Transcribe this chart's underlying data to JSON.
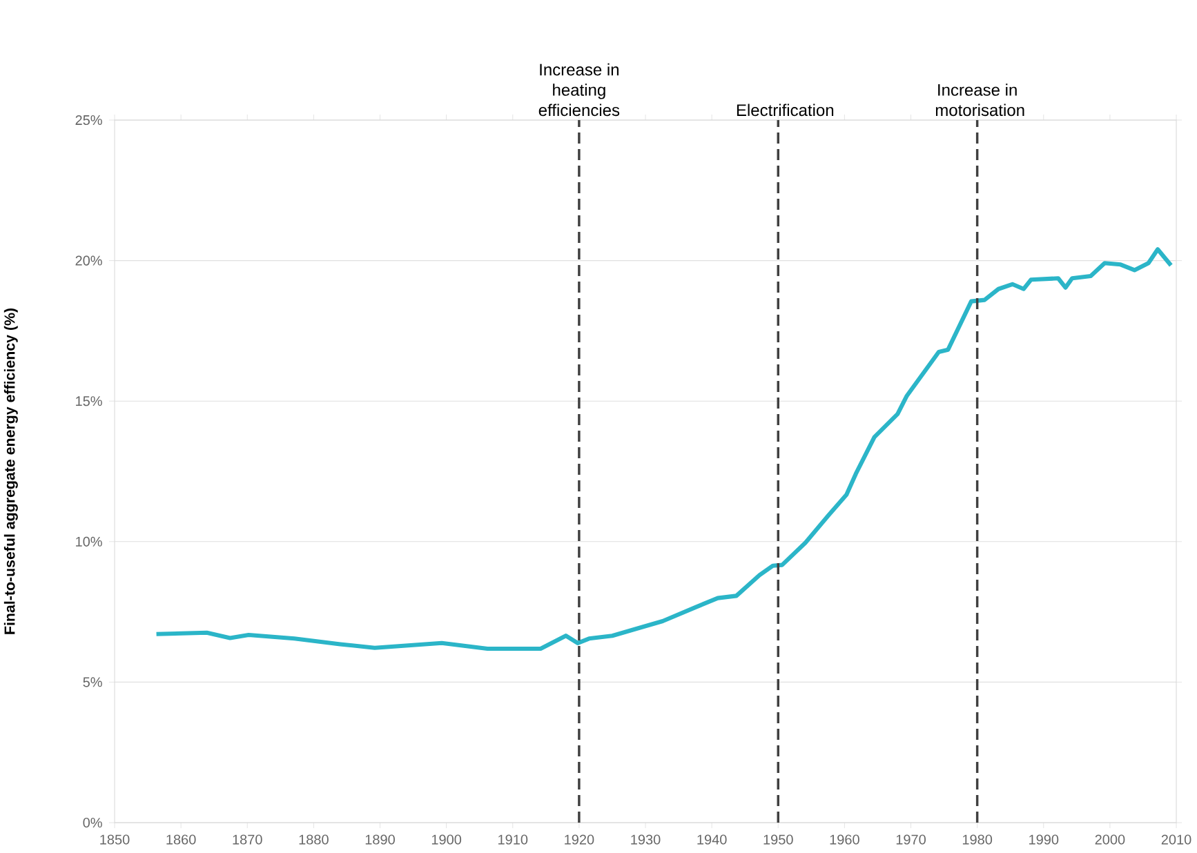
{
  "chart_data": {
    "type": "line",
    "ylabel": "Final-to-useful aggregate energy efficiency (%)",
    "x": [
      1856.3,
      1863.9,
      1867.4,
      1870.2,
      1877.1,
      1884.0,
      1889.2,
      1899.3,
      1906.2,
      1914.2,
      1918.0,
      1919.8,
      1921.5,
      1925.0,
      1929.1,
      1932.6,
      1937.5,
      1940.9,
      1943.7,
      1947.2,
      1949.2,
      1950.6,
      1954.1,
      1957.6,
      1960.3,
      1961.7,
      1964.5,
      1968.0,
      1969.4,
      1974.2,
      1975.6,
      1979.1,
      1981.1,
      1983.2,
      1985.3,
      1987.0,
      1988.1,
      1992.2,
      1993.3,
      1994.3,
      1997.1,
      1999.2,
      2001.6,
      2003.7,
      2005.8,
      2007.2,
      2009.2
    ],
    "series": [
      {
        "color": "#2bb5c8",
        "values": [
          6.71,
          6.76,
          6.57,
          6.68,
          6.55,
          6.35,
          6.22,
          6.39,
          6.19,
          6.19,
          6.65,
          6.39,
          6.55,
          6.65,
          6.93,
          7.17,
          7.66,
          7.99,
          8.07,
          8.81,
          9.14,
          9.17,
          9.96,
          10.94,
          11.67,
          12.41,
          13.72,
          14.54,
          15.19,
          16.75,
          16.83,
          18.55,
          18.6,
          18.99,
          19.16,
          18.99,
          19.32,
          19.37,
          19.04,
          19.37,
          19.45,
          19.91,
          19.86,
          19.66,
          19.91,
          20.4,
          19.83
        ]
      }
    ],
    "xlim": [
      1850,
      2010
    ],
    "ylim": [
      0,
      25
    ],
    "xticks": [
      1850,
      1860,
      1870,
      1880,
      1890,
      1900,
      1910,
      1920,
      1930,
      1940,
      1950,
      1960,
      1970,
      1980,
      1990,
      2000,
      2010
    ],
    "yticks": [
      {
        "value": 0,
        "label": "0%"
      },
      {
        "value": 5,
        "label": "5%"
      },
      {
        "value": 10,
        "label": "10%"
      },
      {
        "value": 15,
        "label": "15%"
      },
      {
        "value": 20,
        "label": "20%"
      },
      {
        "value": 25,
        "label": "25%"
      }
    ],
    "grid": "y",
    "marker": "none",
    "line_style": "solid",
    "ref_lines": [
      {
        "axis": "x",
        "value": 1920,
        "label": "Increase in heating efficiencies",
        "color": "#404040",
        "line_style": "dashed"
      },
      {
        "axis": "x",
        "value": 1950,
        "label": "Electrification",
        "color": "#404040",
        "line_style": "dashed"
      },
      {
        "axis": "x",
        "value": 1980,
        "label": "Increase in motorisation",
        "color": "#404040",
        "line_style": "dashed"
      }
    ]
  }
}
